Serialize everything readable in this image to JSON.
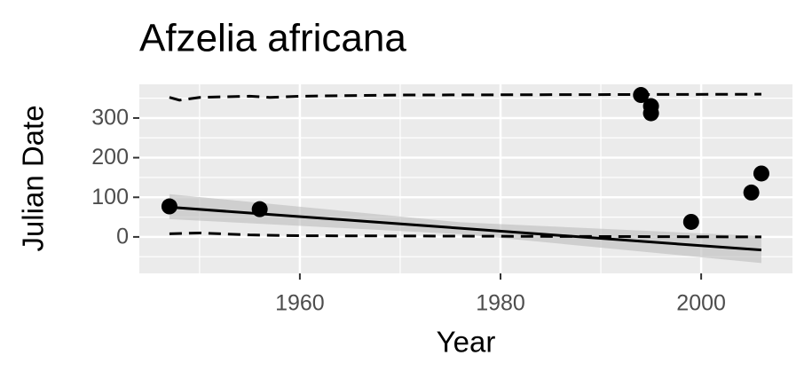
{
  "chart_data": {
    "type": "scatter",
    "title": "Afzelia africana",
    "x_label": "Year",
    "y_label": "Julian Date",
    "xlim": [
      1944,
      2009.1
    ],
    "ylim": [
      -92,
      385
    ],
    "xticks": [
      1960,
      1980,
      2000
    ],
    "yticks": [
      0,
      100,
      200,
      300
    ],
    "minor_xticks": [
      1950,
      1970,
      1990
    ],
    "minor_yticks": [
      -50,
      50,
      150,
      250,
      350
    ],
    "grid": true,
    "points": {
      "x": [
        1947,
        1956,
        1994,
        1995,
        1995,
        1999,
        2005,
        2006
      ],
      "y": [
        77,
        70,
        358,
        330,
        312,
        38,
        112,
        160
      ],
      "color": "#000000"
    },
    "band": {
      "x": [
        1947,
        1976,
        2006
      ],
      "lower": [
        45,
        7,
        -66
      ],
      "upper": [
        108,
        37,
        2
      ],
      "color": "#bdbdbd"
    },
    "fit": {
      "x": [
        1947,
        2006
      ],
      "y": [
        75,
        -33
      ],
      "color": "#000000"
    },
    "upper_quantile": {
      "x": [
        1947,
        1948,
        1950,
        1955,
        1957,
        1960,
        1970,
        2006
      ],
      "y": [
        352,
        345,
        352,
        355,
        352,
        355,
        358,
        360
      ],
      "color": "#000000"
    },
    "lower_quantile": {
      "x": [
        1947,
        1950,
        1955,
        1960,
        2006
      ],
      "y": [
        8,
        10,
        5,
        3,
        0
      ],
      "color": "#000000"
    }
  }
}
